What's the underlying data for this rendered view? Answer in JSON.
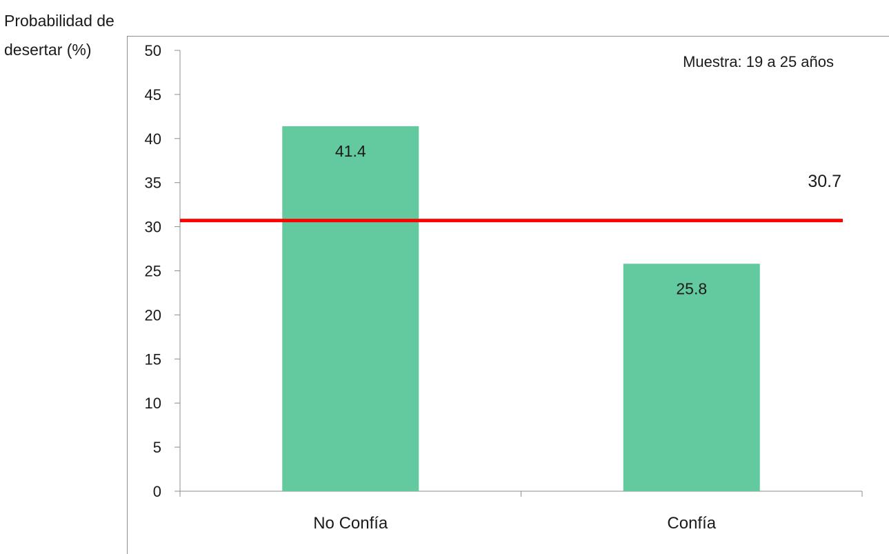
{
  "chart_data": {
    "type": "bar",
    "title": "",
    "ylabel_lines": [
      "Probabilidad de",
      "desertar (%)"
    ],
    "xlabel": "",
    "categories": [
      "No Confía",
      "Confía"
    ],
    "values": [
      41.4,
      25.8
    ],
    "value_labels": [
      "41.4",
      "25.8"
    ],
    "ylim": [
      0,
      50
    ],
    "yticks": [
      0,
      5,
      10,
      15,
      20,
      25,
      30,
      35,
      40,
      45,
      50
    ],
    "grid": false,
    "reference_line": {
      "value": 30.7,
      "label": "30.7",
      "color": "#ff0000"
    },
    "annotation": "Muestra: 19 a 25 años",
    "colors": {
      "bar": "#63c99e",
      "axis": "#8c8c8c",
      "frame": "#8c8c8c"
    }
  }
}
